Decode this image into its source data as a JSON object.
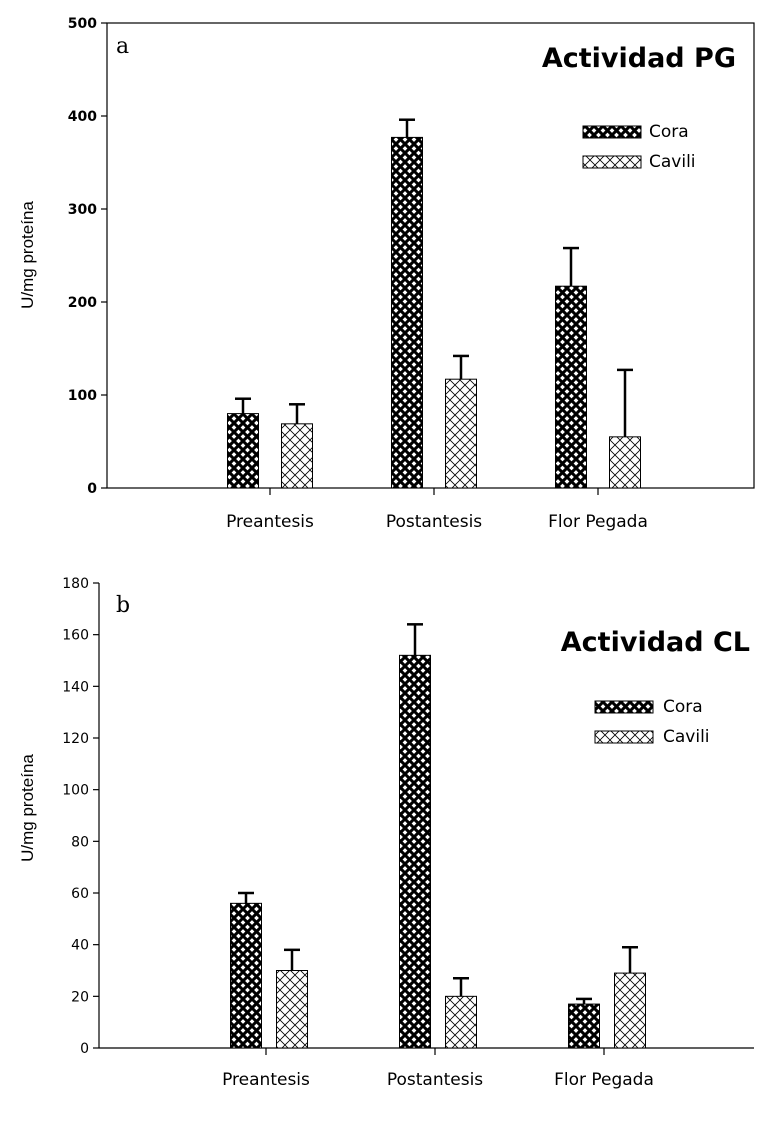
{
  "chart_data": [
    {
      "type": "bar",
      "panel_letter": "a",
      "title": "Actividad PG",
      "xlabel": "",
      "ylabel": "U/mg proteína",
      "categories": [
        "Preantesis",
        "Postantesis",
        "Flor Pegada"
      ],
      "ylim": [
        0,
        500
      ],
      "yticks": [
        0,
        100,
        200,
        300,
        400,
        500
      ],
      "ytick_style": "bold",
      "frame": "box",
      "grid": false,
      "legend_position": "top-right",
      "series": [
        {
          "name": "Cora",
          "pattern": "dense-crosshatch",
          "values": [
            80,
            377,
            217
          ],
          "errors": [
            16,
            19,
            41
          ]
        },
        {
          "name": "Cavili",
          "pattern": "light-crosshatch",
          "values": [
            69,
            117,
            55
          ],
          "errors": [
            21,
            25,
            72
          ]
        }
      ]
    },
    {
      "type": "bar",
      "panel_letter": "b",
      "title": "Actividad CL",
      "xlabel": "",
      "ylabel": "U/mg proteína",
      "categories": [
        "Preantesis",
        "Postantesis",
        "Flor Pegada"
      ],
      "ylim": [
        0,
        180
      ],
      "yticks": [
        0,
        20,
        40,
        60,
        80,
        100,
        120,
        140,
        160,
        180
      ],
      "ytick_style": "normal",
      "frame": "axes",
      "grid": false,
      "legend_position": "top-right",
      "series": [
        {
          "name": "Cora",
          "pattern": "dense-crosshatch",
          "values": [
            56,
            152,
            17
          ],
          "errors": [
            4,
            12,
            2
          ]
        },
        {
          "name": "Cavili",
          "pattern": "light-crosshatch",
          "values": [
            30,
            20,
            29
          ],
          "errors": [
            8,
            7,
            10
          ]
        }
      ]
    }
  ],
  "colors": {
    "axis": "#000000",
    "cora_fill": "#000000",
    "cavili_fill": "#ffffff"
  }
}
